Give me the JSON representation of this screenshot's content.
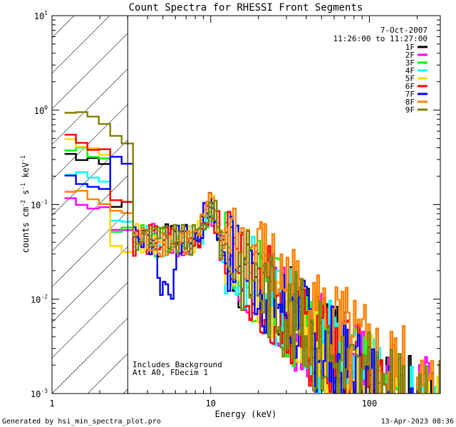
{
  "chart_data": {
    "type": "line",
    "title": "Count Spectra for RHESSI Front Segments",
    "xlabel": "Energy (keV)",
    "ylabel_parts": [
      "counts cm",
      "-2",
      " s",
      "-1",
      " keV",
      "-1"
    ],
    "xscale": "log",
    "yscale": "log",
    "xlim": [
      1,
      280
    ],
    "ylim": [
      0.001,
      10
    ],
    "x_ticks": [
      {
        "value": 1,
        "label": "1"
      },
      {
        "value": 10,
        "label": "10"
      },
      {
        "value": 100,
        "label": "100"
      }
    ],
    "y_ticks": [
      {
        "value": 0.001,
        "base": "10",
        "exp": "-3"
      },
      {
        "value": 0.01,
        "base": "10",
        "exp": "-2"
      },
      {
        "value": 0.1,
        "base": "10",
        "exp": "-1"
      },
      {
        "value": 1,
        "base": "10",
        "exp": "0"
      },
      {
        "value": 10,
        "base": "10",
        "exp": "1"
      }
    ],
    "attenuated_band_upper_kev": 3,
    "date": "7-Oct-2007",
    "time_range": "11:26:00 to 11:27:00",
    "annotations": [
      "Includes Background",
      "Att A0, FDecim 1"
    ],
    "series": [
      {
        "name": "1F",
        "color": "#000000",
        "level": 0.34,
        "kink": 0.11,
        "seed": 1
      },
      {
        "name": "2F",
        "color": "#ff00ff",
        "level": 0.12,
        "kink": 0.062,
        "seed": 2
      },
      {
        "name": "3F",
        "color": "#00ff00",
        "level": 0.4,
        "kink": 0.058,
        "seed": 3
      },
      {
        "name": "4F",
        "color": "#00ffff",
        "level": 0.23,
        "kink": 0.075,
        "seed": 4
      },
      {
        "name": "5F",
        "color": "#ffd700",
        "level": 0.45,
        "kink": 0.04,
        "seed": 5
      },
      {
        "name": "6F",
        "color": "#ff0000",
        "level": 0.52,
        "kink": 0.12,
        "seed": 6
      },
      {
        "name": "7F",
        "color": "#0000ff",
        "level": 0.2,
        "kink": 0.34,
        "seed": 7
      },
      {
        "name": "8F",
        "color": "#ff8000",
        "level": 0.14,
        "kink": 0.09,
        "seed": 8
      },
      {
        "name": "9F",
        "color": "#808000",
        "level": 1.0,
        "kink": 0.55,
        "seed": 9
      }
    ]
  },
  "footer": {
    "generated_by": "Generated by hsi_min_spectra_plot.pro",
    "timestamp": "13-Apr-2023 08:36"
  }
}
